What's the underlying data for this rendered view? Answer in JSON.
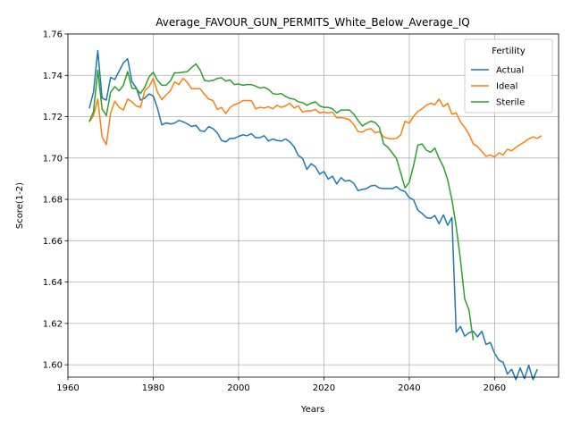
{
  "chart_data": {
    "type": "line",
    "title": "Average_FAVOUR_GUN_PERMITS_White_Below_Average_IQ",
    "xlabel": "Years",
    "ylabel": "Score(1-2)",
    "xlim": [
      1960,
      2075
    ],
    "ylim": [
      1.594,
      1.76
    ],
    "xticks": [
      1960,
      1980,
      2000,
      2020,
      2040,
      2060
    ],
    "yticks": [
      1.6,
      1.62,
      1.64,
      1.66,
      1.68,
      1.7,
      1.72,
      1.74,
      1.76
    ],
    "grid": true,
    "legend": {
      "title": "Fertility",
      "position": "top-right"
    },
    "series": [
      {
        "name": "Actual",
        "color": "#1f77b4",
        "points": [
          [
            1965,
            1.724
          ],
          [
            1966,
            1.732
          ],
          [
            1967,
            1.752
          ],
          [
            1968,
            1.729
          ],
          [
            1969,
            1.728
          ],
          [
            1970,
            1.739
          ],
          [
            1971,
            1.738
          ],
          [
            1972,
            1.742
          ],
          [
            1973,
            1.746
          ],
          [
            1974,
            1.748
          ],
          [
            1975,
            1.737
          ],
          [
            1976,
            1.734
          ],
          [
            1977,
            1.728
          ],
          [
            1978,
            1.729
          ],
          [
            1979,
            1.731
          ],
          [
            1980,
            1.73
          ],
          [
            1981,
            1.724
          ],
          [
            1982,
            1.716
          ],
          [
            1983,
            1.717
          ],
          [
            1984,
            1.7165
          ],
          [
            1985,
            1.7168
          ],
          [
            1986,
            1.7182
          ],
          [
            1987,
            1.7175
          ],
          [
            1988,
            1.7165
          ],
          [
            1989,
            1.7152
          ],
          [
            1990,
            1.7158
          ],
          [
            1991,
            1.7132
          ],
          [
            1992,
            1.7128
          ],
          [
            1993,
            1.7152
          ],
          [
            1994,
            1.7142
          ],
          [
            1995,
            1.7122
          ],
          [
            1996,
            1.7085
          ],
          [
            1997,
            1.7078
          ],
          [
            1998,
            1.7095
          ],
          [
            1999,
            1.7095
          ],
          [
            2000,
            1.7105
          ],
          [
            2001,
            1.7112
          ],
          [
            2002,
            1.7108
          ],
          [
            2003,
            1.7118
          ],
          [
            2004,
            1.7098
          ],
          [
            2005,
            1.7098
          ],
          [
            2006,
            1.7108
          ],
          [
            2007,
            1.7082
          ],
          [
            2008,
            1.7092
          ],
          [
            2009,
            1.7085
          ],
          [
            2010,
            1.7082
          ],
          [
            2011,
            1.7092
          ],
          [
            2012,
            1.7078
          ],
          [
            2013,
            1.7055
          ],
          [
            2014,
            1.7012
          ],
          [
            2015,
            1.6998
          ],
          [
            2016,
            1.6945
          ],
          [
            2017,
            1.6972
          ],
          [
            2018,
            1.6958
          ],
          [
            2019,
            1.6922
          ],
          [
            2020,
            1.6935
          ],
          [
            2021,
            1.6898
          ],
          [
            2022,
            1.6912
          ],
          [
            2023,
            1.6875
          ],
          [
            2024,
            1.6905
          ],
          [
            2025,
            1.6888
          ],
          [
            2026,
            1.6892
          ],
          [
            2027,
            1.6878
          ],
          [
            2028,
            1.6842
          ],
          [
            2029,
            1.6848
          ],
          [
            2030,
            1.6852
          ],
          [
            2031,
            1.6865
          ],
          [
            2032,
            1.6868
          ],
          [
            2033,
            1.6855
          ],
          [
            2034,
            1.6852
          ],
          [
            2035,
            1.6852
          ],
          [
            2036,
            1.6852
          ],
          [
            2037,
            1.6862
          ],
          [
            2038,
            1.6845
          ],
          [
            2039,
            1.6838
          ],
          [
            2040,
            1.6808
          ],
          [
            2041,
            1.6798
          ],
          [
            2042,
            1.6748
          ],
          [
            2043,
            1.6732
          ],
          [
            2044,
            1.6712
          ],
          [
            2045,
            1.6708
          ],
          [
            2046,
            1.6722
          ],
          [
            2047,
            1.6682
          ],
          [
            2048,
            1.6725
          ],
          [
            2049,
            1.6675
          ],
          [
            2050,
            1.6712
          ],
          [
            2051,
            1.6158
          ],
          [
            2052,
            1.6185
          ],
          [
            2053,
            1.6138
          ],
          [
            2054,
            1.6155
          ],
          [
            2055,
            1.6162
          ],
          [
            2056,
            1.6135
          ],
          [
            2057,
            1.6162
          ],
          [
            2058,
            1.6098
          ],
          [
            2059,
            1.6108
          ],
          [
            2060,
            1.6055
          ],
          [
            2061,
            1.6022
          ],
          [
            2062,
            1.6012
          ],
          [
            2063,
            1.5955
          ],
          [
            2064,
            1.5978
          ],
          [
            2065,
            1.5928
          ],
          [
            2066,
            1.5985
          ],
          [
            2067,
            1.5932
          ],
          [
            2068,
            1.5998
          ],
          [
            2069,
            1.5928
          ],
          [
            2070,
            1.5978
          ]
        ]
      },
      {
        "name": "Ideal",
        "color": "#ff7f0e",
        "points": [
          [
            1965,
            1.7175
          ],
          [
            1966,
            1.7205
          ],
          [
            1967,
            1.7285
          ],
          [
            1968,
            1.7102
          ],
          [
            1969,
            1.7065
          ],
          [
            1970,
            1.7218
          ],
          [
            1971,
            1.7275
          ],
          [
            1972,
            1.7245
          ],
          [
            1973,
            1.7232
          ],
          [
            1974,
            1.7285
          ],
          [
            1975,
            1.7272
          ],
          [
            1976,
            1.7252
          ],
          [
            1977,
            1.7245
          ],
          [
            1978,
            1.7325
          ],
          [
            1979,
            1.7345
          ],
          [
            1980,
            1.7385
          ],
          [
            1981,
            1.7318
          ],
          [
            1982,
            1.7282
          ],
          [
            1983,
            1.7305
          ],
          [
            1984,
            1.7325
          ],
          [
            1985,
            1.7368
          ],
          [
            1986,
            1.7355
          ],
          [
            1987,
            1.7385
          ],
          [
            1988,
            1.7365
          ],
          [
            1989,
            1.7335
          ],
          [
            1990,
            1.7335
          ],
          [
            1991,
            1.7335
          ],
          [
            1992,
            1.7308
          ],
          [
            1993,
            1.7285
          ],
          [
            1994,
            1.7278
          ],
          [
            1995,
            1.7235
          ],
          [
            1996,
            1.7245
          ],
          [
            1997,
            1.7215
          ],
          [
            1998,
            1.7245
          ],
          [
            1999,
            1.7258
          ],
          [
            2000,
            1.7265
          ],
          [
            2001,
            1.7278
          ],
          [
            2002,
            1.7278
          ],
          [
            2003,
            1.7278
          ],
          [
            2004,
            1.7238
          ],
          [
            2005,
            1.7245
          ],
          [
            2006,
            1.7242
          ],
          [
            2007,
            1.7248
          ],
          [
            2008,
            1.7238
          ],
          [
            2009,
            1.7255
          ],
          [
            2010,
            1.7245
          ],
          [
            2011,
            1.7252
          ],
          [
            2012,
            1.7265
          ],
          [
            2013,
            1.7242
          ],
          [
            2014,
            1.7252
          ],
          [
            2015,
            1.7222
          ],
          [
            2016,
            1.7228
          ],
          [
            2017,
            1.7228
          ],
          [
            2018,
            1.7235
          ],
          [
            2019,
            1.7218
          ],
          [
            2020,
            1.7222
          ],
          [
            2021,
            1.7218
          ],
          [
            2022,
            1.7222
          ],
          [
            2023,
            1.7195
          ],
          [
            2024,
            1.7195
          ],
          [
            2025,
            1.7192
          ],
          [
            2026,
            1.7185
          ],
          [
            2027,
            1.7162
          ],
          [
            2028,
            1.7128
          ],
          [
            2029,
            1.7125
          ],
          [
            2030,
            1.7138
          ],
          [
            2031,
            1.7142
          ],
          [
            2032,
            1.7122
          ],
          [
            2033,
            1.7128
          ],
          [
            2034,
            1.7102
          ],
          [
            2035,
            1.7095
          ],
          [
            2036,
            1.7092
          ],
          [
            2037,
            1.7095
          ],
          [
            2038,
            1.7112
          ],
          [
            2039,
            1.7178
          ],
          [
            2040,
            1.7168
          ],
          [
            2041,
            1.7202
          ],
          [
            2042,
            1.7225
          ],
          [
            2043,
            1.7238
          ],
          [
            2044,
            1.7255
          ],
          [
            2045,
            1.7265
          ],
          [
            2046,
            1.7258
          ],
          [
            2047,
            1.7285
          ],
          [
            2048,
            1.7248
          ],
          [
            2049,
            1.7265
          ],
          [
            2050,
            1.7212
          ],
          [
            2051,
            1.7218
          ],
          [
            2052,
            1.7175
          ],
          [
            2053,
            1.7148
          ],
          [
            2054,
            1.7115
          ],
          [
            2055,
            1.7068
          ],
          [
            2056,
            1.7055
          ],
          [
            2057,
            1.7032
          ],
          [
            2058,
            1.7008
          ],
          [
            2059,
            1.7015
          ],
          [
            2060,
            1.7005
          ],
          [
            2061,
            1.7025
          ],
          [
            2062,
            1.7015
          ],
          [
            2063,
            1.7042
          ],
          [
            2064,
            1.7035
          ],
          [
            2065,
            1.7052
          ],
          [
            2066,
            1.7065
          ],
          [
            2067,
            1.7078
          ],
          [
            2068,
            1.7092
          ],
          [
            2069,
            1.7102
          ],
          [
            2070,
            1.7095
          ],
          [
            2071,
            1.7108
          ]
        ]
      },
      {
        "name": "Sterile",
        "color": "#2ca02c",
        "points": [
          [
            1965,
            1.7175
          ],
          [
            1966,
            1.7225
          ],
          [
            1967,
            1.7425
          ],
          [
            1968,
            1.7238
          ],
          [
            1969,
            1.7205
          ],
          [
            1970,
            1.7318
          ],
          [
            1971,
            1.7345
          ],
          [
            1972,
            1.7325
          ],
          [
            1973,
            1.7352
          ],
          [
            1974,
            1.7418
          ],
          [
            1975,
            1.7338
          ],
          [
            1976,
            1.7335
          ],
          [
            1977,
            1.7312
          ],
          [
            1978,
            1.7342
          ],
          [
            1979,
            1.7392
          ],
          [
            1980,
            1.7415
          ],
          [
            1981,
            1.7375
          ],
          [
            1982,
            1.7352
          ],
          [
            1983,
            1.7352
          ],
          [
            1984,
            1.7372
          ],
          [
            1985,
            1.7412
          ],
          [
            1986,
            1.7412
          ],
          [
            1987,
            1.7415
          ],
          [
            1988,
            1.7418
          ],
          [
            1989,
            1.7438
          ],
          [
            1990,
            1.7455
          ],
          [
            1991,
            1.7425
          ],
          [
            1992,
            1.7375
          ],
          [
            1993,
            1.7372
          ],
          [
            1994,
            1.7375
          ],
          [
            1995,
            1.7385
          ],
          [
            1996,
            1.7388
          ],
          [
            1997,
            1.7372
          ],
          [
            1998,
            1.7378
          ],
          [
            1999,
            1.7355
          ],
          [
            2000,
            1.7358
          ],
          [
            2001,
            1.7352
          ],
          [
            2002,
            1.7355
          ],
          [
            2003,
            1.7355
          ],
          [
            2004,
            1.7348
          ],
          [
            2005,
            1.7338
          ],
          [
            2006,
            1.7342
          ],
          [
            2007,
            1.7332
          ],
          [
            2008,
            1.7312
          ],
          [
            2009,
            1.7308
          ],
          [
            2010,
            1.7312
          ],
          [
            2011,
            1.7298
          ],
          [
            2012,
            1.7288
          ],
          [
            2013,
            1.7285
          ],
          [
            2014,
            1.7272
          ],
          [
            2015,
            1.7268
          ],
          [
            2016,
            1.7255
          ],
          [
            2017,
            1.7265
          ],
          [
            2018,
            1.7272
          ],
          [
            2019,
            1.7252
          ],
          [
            2020,
            1.7245
          ],
          [
            2021,
            1.7245
          ],
          [
            2022,
            1.7238
          ],
          [
            2023,
            1.7218
          ],
          [
            2024,
            1.7232
          ],
          [
            2025,
            1.7232
          ],
          [
            2026,
            1.7232
          ],
          [
            2027,
            1.7212
          ],
          [
            2028,
            1.7182
          ],
          [
            2029,
            1.7155
          ],
          [
            2030,
            1.7168
          ],
          [
            2031,
            1.7178
          ],
          [
            2032,
            1.7172
          ],
          [
            2033,
            1.7148
          ],
          [
            2034,
            1.7068
          ],
          [
            2035,
            1.7052
          ],
          [
            2036,
            1.7025
          ],
          [
            2037,
            1.6998
          ],
          [
            2038,
            1.6928
          ],
          [
            2039,
            1.6855
          ],
          [
            2040,
            1.6882
          ],
          [
            2041,
            1.6962
          ],
          [
            2042,
            1.7062
          ],
          [
            2043,
            1.7068
          ],
          [
            2044,
            1.7038
          ],
          [
            2045,
            1.7028
          ],
          [
            2046,
            1.7048
          ],
          [
            2047,
            1.6998
          ],
          [
            2048,
            1.6958
          ],
          [
            2049,
            1.6895
          ],
          [
            2050,
            1.6798
          ],
          [
            2051,
            1.6668
          ],
          [
            2052,
            1.6508
          ],
          [
            2053,
            1.6318
          ],
          [
            2054,
            1.6265
          ],
          [
            2055,
            1.6118
          ]
        ]
      }
    ]
  }
}
